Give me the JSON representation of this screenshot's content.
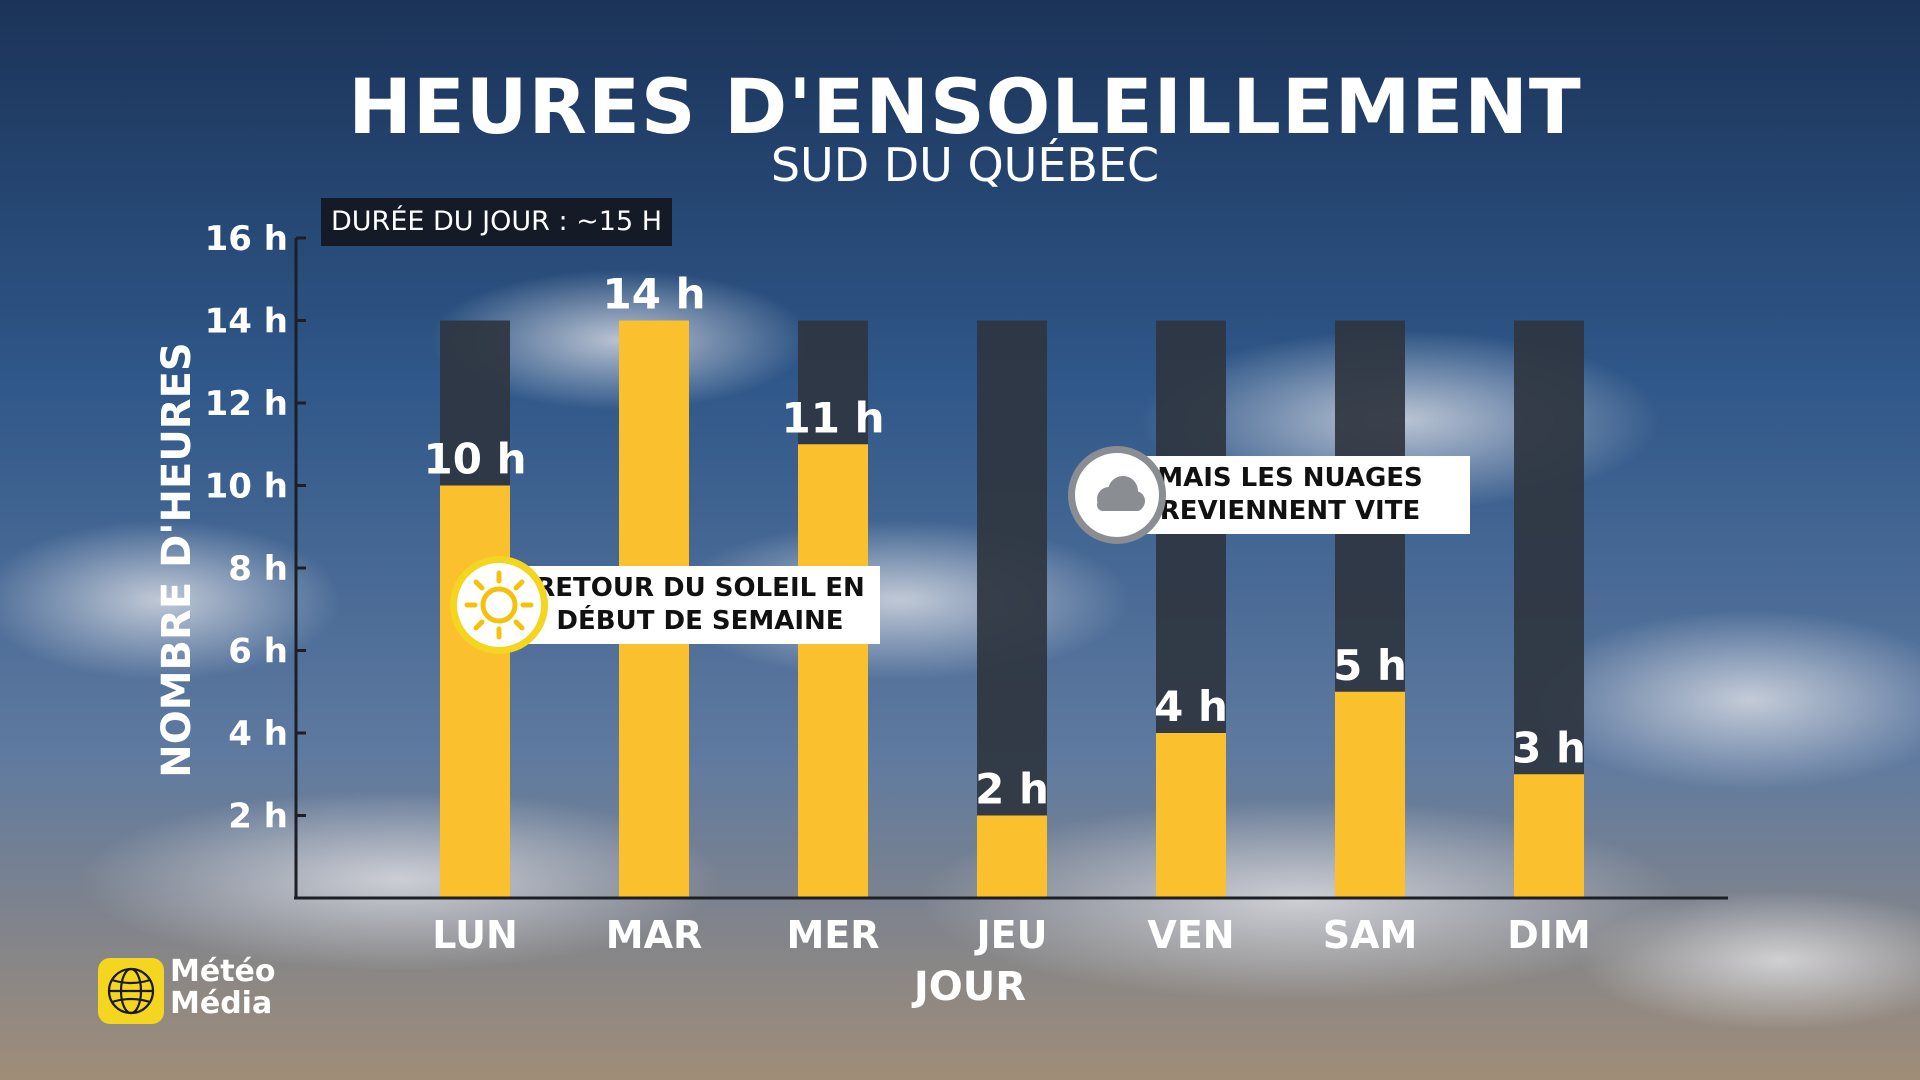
{
  "header": {
    "title": "HEURES D'ENSOLEILLEMENT",
    "subtitle": "SUD DU QUÉBEC",
    "day_length": "DURÉE DU JOUR : ~15 H"
  },
  "callouts": {
    "sun": {
      "line1": "RETOUR DU SOLEIL EN",
      "line2": "DÉBUT DE SEMAINE",
      "icon": "sun-icon"
    },
    "cloud": {
      "line1": "MAIS LES NUAGES",
      "line2": "REVIENNENT VITE",
      "icon": "cloud-icon"
    }
  },
  "logo": {
    "line1": "Météo",
    "line2": "Média",
    "icon": "globe-icon"
  },
  "colors": {
    "sun_bar": "#fbc02d",
    "day_bar": "#2f3540",
    "axis": "#1c1f26"
  },
  "chart_data": {
    "type": "bar",
    "categories": [
      "LUN",
      "MAR",
      "MER",
      "JEU",
      "VEN",
      "SAM",
      "DIM"
    ],
    "series": [
      {
        "values": [
          14,
          14,
          14,
          14,
          14,
          14,
          14
        ]
      },
      {
        "values": [
          10,
          14,
          11,
          2,
          4,
          5,
          3
        ]
      }
    ],
    "data_labels": [
      "10 h",
      "14 h",
      "11 h",
      "2 h",
      "4 h",
      "5 h",
      "3 h"
    ],
    "yticks": [
      "2 h",
      "4 h",
      "6 h",
      "8 h",
      "10 h",
      "12 h",
      "14 h",
      "16 h"
    ],
    "ytick_values": [
      2,
      4,
      6,
      8,
      10,
      12,
      14,
      16
    ],
    "ylim": [
      0,
      16
    ],
    "xlabel": "JOUR",
    "ylabel": "NOMBRE D'HEURES",
    "grid": false
  }
}
